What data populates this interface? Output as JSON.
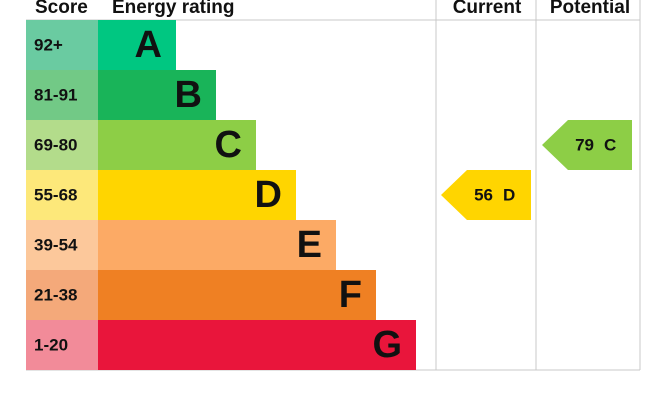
{
  "header": {
    "score": "Score",
    "rating": "Energy rating",
    "current": "Current",
    "potential": "Potential"
  },
  "rows": [
    {
      "score": "92+",
      "band": "A",
      "score_color": "#6acba1",
      "color": "#00c781"
    },
    {
      "score": "81-91",
      "band": "B",
      "score_color": "#72c986",
      "color": "#19b459"
    },
    {
      "score": "69-80",
      "band": "C",
      "score_color": "#b3dc8b",
      "color": "#8dce46"
    },
    {
      "score": "55-68",
      "band": "D",
      "score_color": "#fde87a",
      "color": "#ffd500"
    },
    {
      "score": "39-54",
      "band": "E",
      "score_color": "#fcc89b",
      "color": "#fcaa65"
    },
    {
      "score": "21-38",
      "band": "F",
      "score_color": "#f4a97a",
      "color": "#ef8023"
    },
    {
      "score": "1-20",
      "band": "G",
      "score_color": "#f28b99",
      "color": "#e9153b"
    }
  ],
  "current": {
    "value": 56,
    "band": "D",
    "color": "#ffd500"
  },
  "potential": {
    "value": 79,
    "band": "C",
    "color": "#8dce46"
  }
}
